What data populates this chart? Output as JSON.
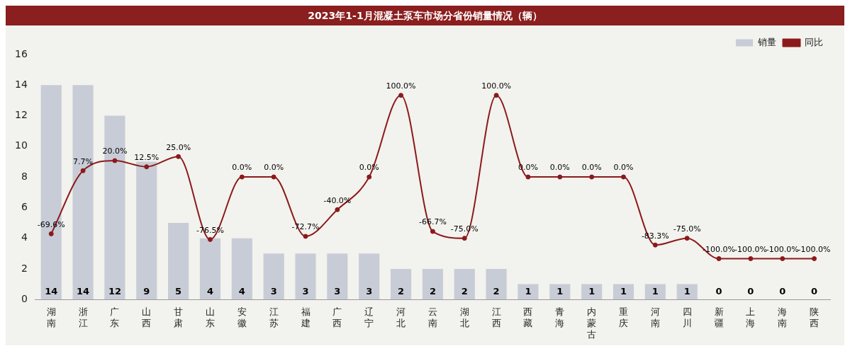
{
  "chart_data": {
    "type": "bar",
    "title": "2023年1-1月混凝土泵车市场分省份销量情况（辆）",
    "categories": [
      "湖南",
      "浙江",
      "广东",
      "山西",
      "甘肃",
      "山东",
      "安徽",
      "江苏",
      "福建",
      "广西",
      "辽宁",
      "河北",
      "云南",
      "湖北",
      "江西",
      "西藏",
      "青海",
      "内蒙古",
      "重庆",
      "河南",
      "四川",
      "新疆",
      "上海",
      "海南",
      "陕西"
    ],
    "series": [
      {
        "name": "销量",
        "color": "#c8ccd6",
        "values": [
          14,
          14,
          12,
          9,
          5,
          4,
          4,
          3,
          3,
          3,
          3,
          2,
          2,
          2,
          2,
          1,
          1,
          1,
          1,
          1,
          1,
          0,
          0,
          0,
          0
        ]
      },
      {
        "name": "同比",
        "type": "line",
        "axis": "y2",
        "color": "#8b1a1a",
        "marker": "circle",
        "values": [
          -69.6,
          7.7,
          20.0,
          12.5,
          25.0,
          -76.5,
          0.0,
          0.0,
          -72.7,
          -40.0,
          0.0,
          100.0,
          -66.7,
          -75.0,
          100.0,
          0.0,
          0.0,
          0.0,
          0.0,
          -83.3,
          -75.0,
          -100.0,
          -100.0,
          -100.0,
          -100.0
        ],
        "value_labels": [
          "-69.6%",
          "7.7%",
          "20.0%",
          "12.5%",
          "25.0%",
          "-76.5%",
          "0.0%",
          "0.0%",
          "-72.7%",
          "-40.0%",
          "0.0%",
          "100.0%",
          "-66.7%",
          "-75.0%",
          "100.0%",
          "0.0%",
          "0.0%",
          "0.0%",
          "0.0%",
          "-83.3%",
          "-75.0%",
          "-100.0%",
          "-100.0%",
          "-100.0%",
          "-100.0%"
        ]
      }
    ],
    "ylim": [
      0,
      16
    ],
    "yticks": [
      0,
      2,
      4,
      6,
      8,
      10,
      12,
      14,
      16
    ],
    "data_labels": true,
    "legend": "top right",
    "grid": false
  }
}
